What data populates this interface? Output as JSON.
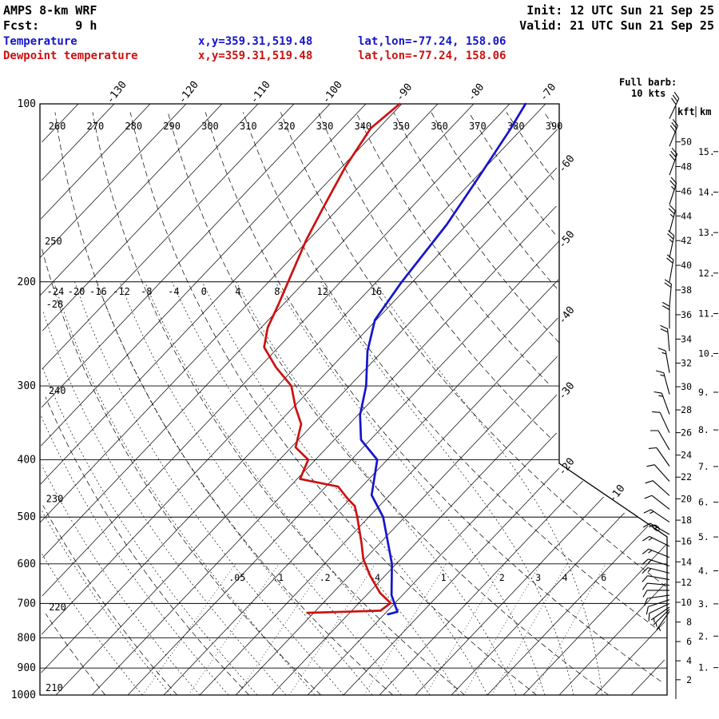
{
  "header": {
    "model": "AMPS 8-km WRF",
    "fcst": "Fcst:     9 h",
    "init": "Init: 12 UTC Sun 21 Sep 25",
    "valid": "Valid: 21 UTC Sun 21 Sep 25",
    "temp_label": "Temperature",
    "temp_xy": "x,y=359.31,519.48",
    "temp_latlon": "lat,lon=-77.24, 158.06",
    "dewp_label": "Dewpoint temperature",
    "dewp_xy": "x,y=359.31,519.48",
    "dewp_latlon": "lat,lon=-77.24, 158.06",
    "barb_note_1": "Full barb:",
    "barb_note_2": "10 kts"
  },
  "colors": {
    "temperature": "#1515cc",
    "dewpoint": "#cc1111",
    "grid": "#000000"
  },
  "chart_data": {
    "type": "skewt_log_p",
    "pressure_axis_label_unit": "hPa",
    "pressure_levels": [
      100,
      200,
      300,
      400,
      500,
      600,
      700,
      800,
      900,
      1000
    ],
    "isotherm_step_c": 5,
    "isotherm_labels_top_c": [
      -130,
      -120,
      -110,
      -100,
      -90,
      -80,
      -70
    ],
    "isotherm_labels_right_c": [
      -60,
      -50,
      -40,
      -30,
      -20
    ],
    "isotherm_labels_edge_c": [
      -10,
      0
    ],
    "dry_adiabat_labels_top_k": [
      260,
      270,
      280,
      290,
      300,
      310,
      320,
      330,
      340,
      350,
      360,
      370,
      380,
      390
    ],
    "dry_adiabat_labels_left_k": [
      210,
      220,
      230,
      240,
      250
    ],
    "moist_adiabat_labels_c": [
      -28,
      -24,
      -20,
      -16,
      -12,
      -8,
      -4,
      0,
      4,
      8,
      12,
      16
    ],
    "mixing_ratio_values_gkg": [
      0.05,
      0.1,
      0.2,
      0.4,
      1,
      2,
      3,
      4,
      6
    ],
    "mixing_ratio_labels": [
      ".05",
      ".1",
      ".2",
      ".4",
      "1",
      "2",
      "3",
      "4",
      "6"
    ],
    "scales": {
      "left_label": "kft",
      "right_label": "km"
    },
    "kft_scale": [
      2,
      4,
      6,
      8,
      10,
      12,
      14,
      16,
      18,
      20,
      22,
      24,
      26,
      28,
      30,
      32,
      34,
      36,
      38,
      40,
      42,
      44,
      46,
      48,
      50
    ],
    "km_scale": [
      1,
      2,
      3,
      4,
      5,
      6,
      7,
      8,
      9,
      10,
      11,
      12,
      13,
      14,
      15
    ],
    "temperature_profile": [
      [
        730,
        -24.5
      ],
      [
        723,
        -23.5
      ],
      [
        678,
        -26.5
      ],
      [
        600,
        -30.6
      ],
      [
        500,
        -38.0
      ],
      [
        459,
        -42.5
      ],
      [
        400,
        -46.4
      ],
      [
        370,
        -51.3
      ],
      [
        336,
        -54.7
      ],
      [
        300,
        -57.7
      ],
      [
        262,
        -62.1
      ],
      [
        232,
        -65.2
      ],
      [
        200,
        -66.5
      ],
      [
        160,
        -67.8
      ],
      [
        132,
        -69.7
      ],
      [
        110,
        -71.6
      ],
      [
        100,
        -72.8
      ]
    ],
    "dewpoint_profile": [
      [
        726,
        -35.9
      ],
      [
        723,
        -31.0
      ],
      [
        720,
        -26.0
      ],
      [
        699,
        -25.6
      ],
      [
        672,
        -28.4
      ],
      [
        629,
        -32.0
      ],
      [
        589,
        -35.2
      ],
      [
        553,
        -37.6
      ],
      [
        500,
        -41.6
      ],
      [
        479,
        -43.4
      ],
      [
        466,
        -45.3
      ],
      [
        444,
        -48.3
      ],
      [
        431,
        -54.6
      ],
      [
        400,
        -56.0
      ],
      [
        381,
        -59.4
      ],
      [
        348,
        -61.7
      ],
      [
        326,
        -64.7
      ],
      [
        300,
        -68.1
      ],
      [
        279,
        -72.7
      ],
      [
        258,
        -77.0
      ],
      [
        239,
        -79.1
      ],
      [
        218,
        -80.7
      ],
      [
        200,
        -82.3
      ],
      [
        170,
        -85.3
      ],
      [
        150,
        -87.2
      ],
      [
        128,
        -89.5
      ],
      [
        110,
        -91.1
      ],
      [
        100,
        -90.3
      ]
    ],
    "wind_barbs": [
      [
        106,
        25,
        30
      ],
      [
        118,
        22,
        30
      ],
      [
        132,
        20,
        28
      ],
      [
        148,
        18,
        26
      ],
      [
        165,
        15,
        25
      ],
      [
        182,
        12,
        24
      ],
      [
        200,
        10,
        22
      ],
      [
        220,
        5,
        20
      ],
      [
        240,
        0,
        20
      ],
      [
        262,
        355,
        18
      ],
      [
        285,
        350,
        16
      ],
      [
        310,
        345,
        15
      ],
      [
        335,
        340,
        14
      ],
      [
        360,
        335,
        12
      ],
      [
        385,
        330,
        12
      ],
      [
        410,
        325,
        10
      ],
      [
        435,
        318,
        10
      ],
      [
        460,
        312,
        12
      ],
      [
        485,
        308,
        12
      ],
      [
        510,
        304,
        14
      ],
      [
        535,
        300,
        15
      ],
      [
        560,
        296,
        15
      ],
      [
        585,
        292,
        16
      ],
      [
        605,
        288,
        15
      ],
      [
        622,
        284,
        14
      ],
      [
        638,
        280,
        12
      ],
      [
        652,
        275,
        12
      ],
      [
        665,
        270,
        10
      ],
      [
        678,
        262,
        10
      ],
      [
        690,
        252,
        8
      ],
      [
        700,
        244,
        8
      ],
      [
        710,
        235,
        6
      ],
      [
        716,
        226,
        5
      ],
      [
        722,
        215,
        5
      ]
    ]
  }
}
